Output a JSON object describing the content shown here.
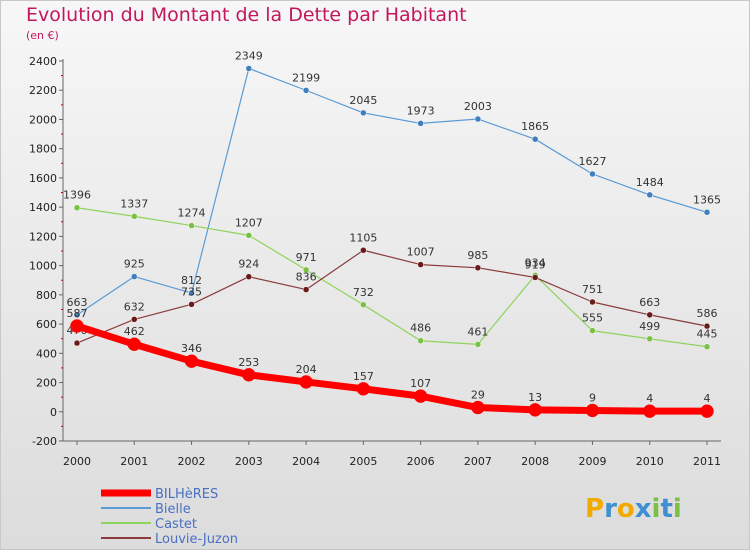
{
  "title": "Evolution du Montant de la Dette par Habitant",
  "subtitle": "(en €)",
  "brand": {
    "letters": [
      "P",
      "r",
      "o",
      "x",
      "i",
      "t",
      "i"
    ],
    "colors": [
      "#f2a900",
      "#3f8fd2",
      "#f2a900",
      "#3f8fd2",
      "#7ac143",
      "#3f8fd2",
      "#7ac143"
    ]
  },
  "chart_data": {
    "type": "line",
    "x": [
      "2000",
      "2001",
      "2002",
      "2003",
      "2004",
      "2005",
      "2006",
      "2007",
      "2008",
      "2009",
      "2010",
      "2011"
    ],
    "ylim": [
      -200,
      2400
    ],
    "yticks": [
      "-200",
      "0",
      "200",
      "400",
      "600",
      "800",
      "1000",
      "1200",
      "1400",
      "1600",
      "1800",
      "2000",
      "2200",
      "2400"
    ],
    "grid": false,
    "legend": "bottom-left",
    "series": [
      {
        "name": "Bielle",
        "color": "#5b9bd5",
        "dot": "#3f7fbf",
        "width": 1.2,
        "values": [
          663,
          925,
          812,
          2349,
          2199,
          2045,
          1973,
          2003,
          1865,
          1627,
          1484,
          1365
        ],
        "labels": [
          "663",
          "925",
          "812",
          "2349",
          "2199",
          "2045",
          "1973",
          "2003",
          "1865",
          "1627",
          "1484",
          "1365"
        ]
      },
      {
        "name": "Castet",
        "color": "#8fd35a",
        "dot": "#7ac143",
        "width": 1.2,
        "values": [
          1396,
          1337,
          1274,
          1207,
          971,
          732,
          486,
          461,
          934,
          555,
          499,
          445
        ],
        "labels": [
          "1396",
          "1337",
          "1274",
          "1207",
          "971",
          "732",
          "486",
          "461",
          "934",
          "555",
          "499",
          "445"
        ]
      },
      {
        "name": "Louvie-Juzon",
        "color": "#8a3b3b",
        "dot": "#6b1a1a",
        "width": 1.2,
        "values": [
          470,
          632,
          735,
          924,
          836,
          1105,
          1007,
          985,
          919,
          751,
          663,
          586
        ],
        "labels": [
          "470",
          "632",
          "735",
          "924",
          "836",
          "1105",
          "1007",
          "985",
          "919",
          "751",
          "663",
          "586"
        ]
      },
      {
        "name": "BILHèRES",
        "color": "#ff0000",
        "dot": "#ff0000",
        "width": 7,
        "values": [
          587,
          462,
          346,
          253,
          204,
          157,
          107,
          29,
          13,
          9,
          4,
          4
        ],
        "labels": [
          "587",
          "462",
          "346",
          "253",
          "204",
          "157",
          "107",
          "29",
          "13",
          "9",
          "4",
          "4"
        ]
      }
    ],
    "legend_order": [
      "BILHèRES",
      "Bielle",
      "Castet",
      "Louvie-Juzon"
    ]
  }
}
